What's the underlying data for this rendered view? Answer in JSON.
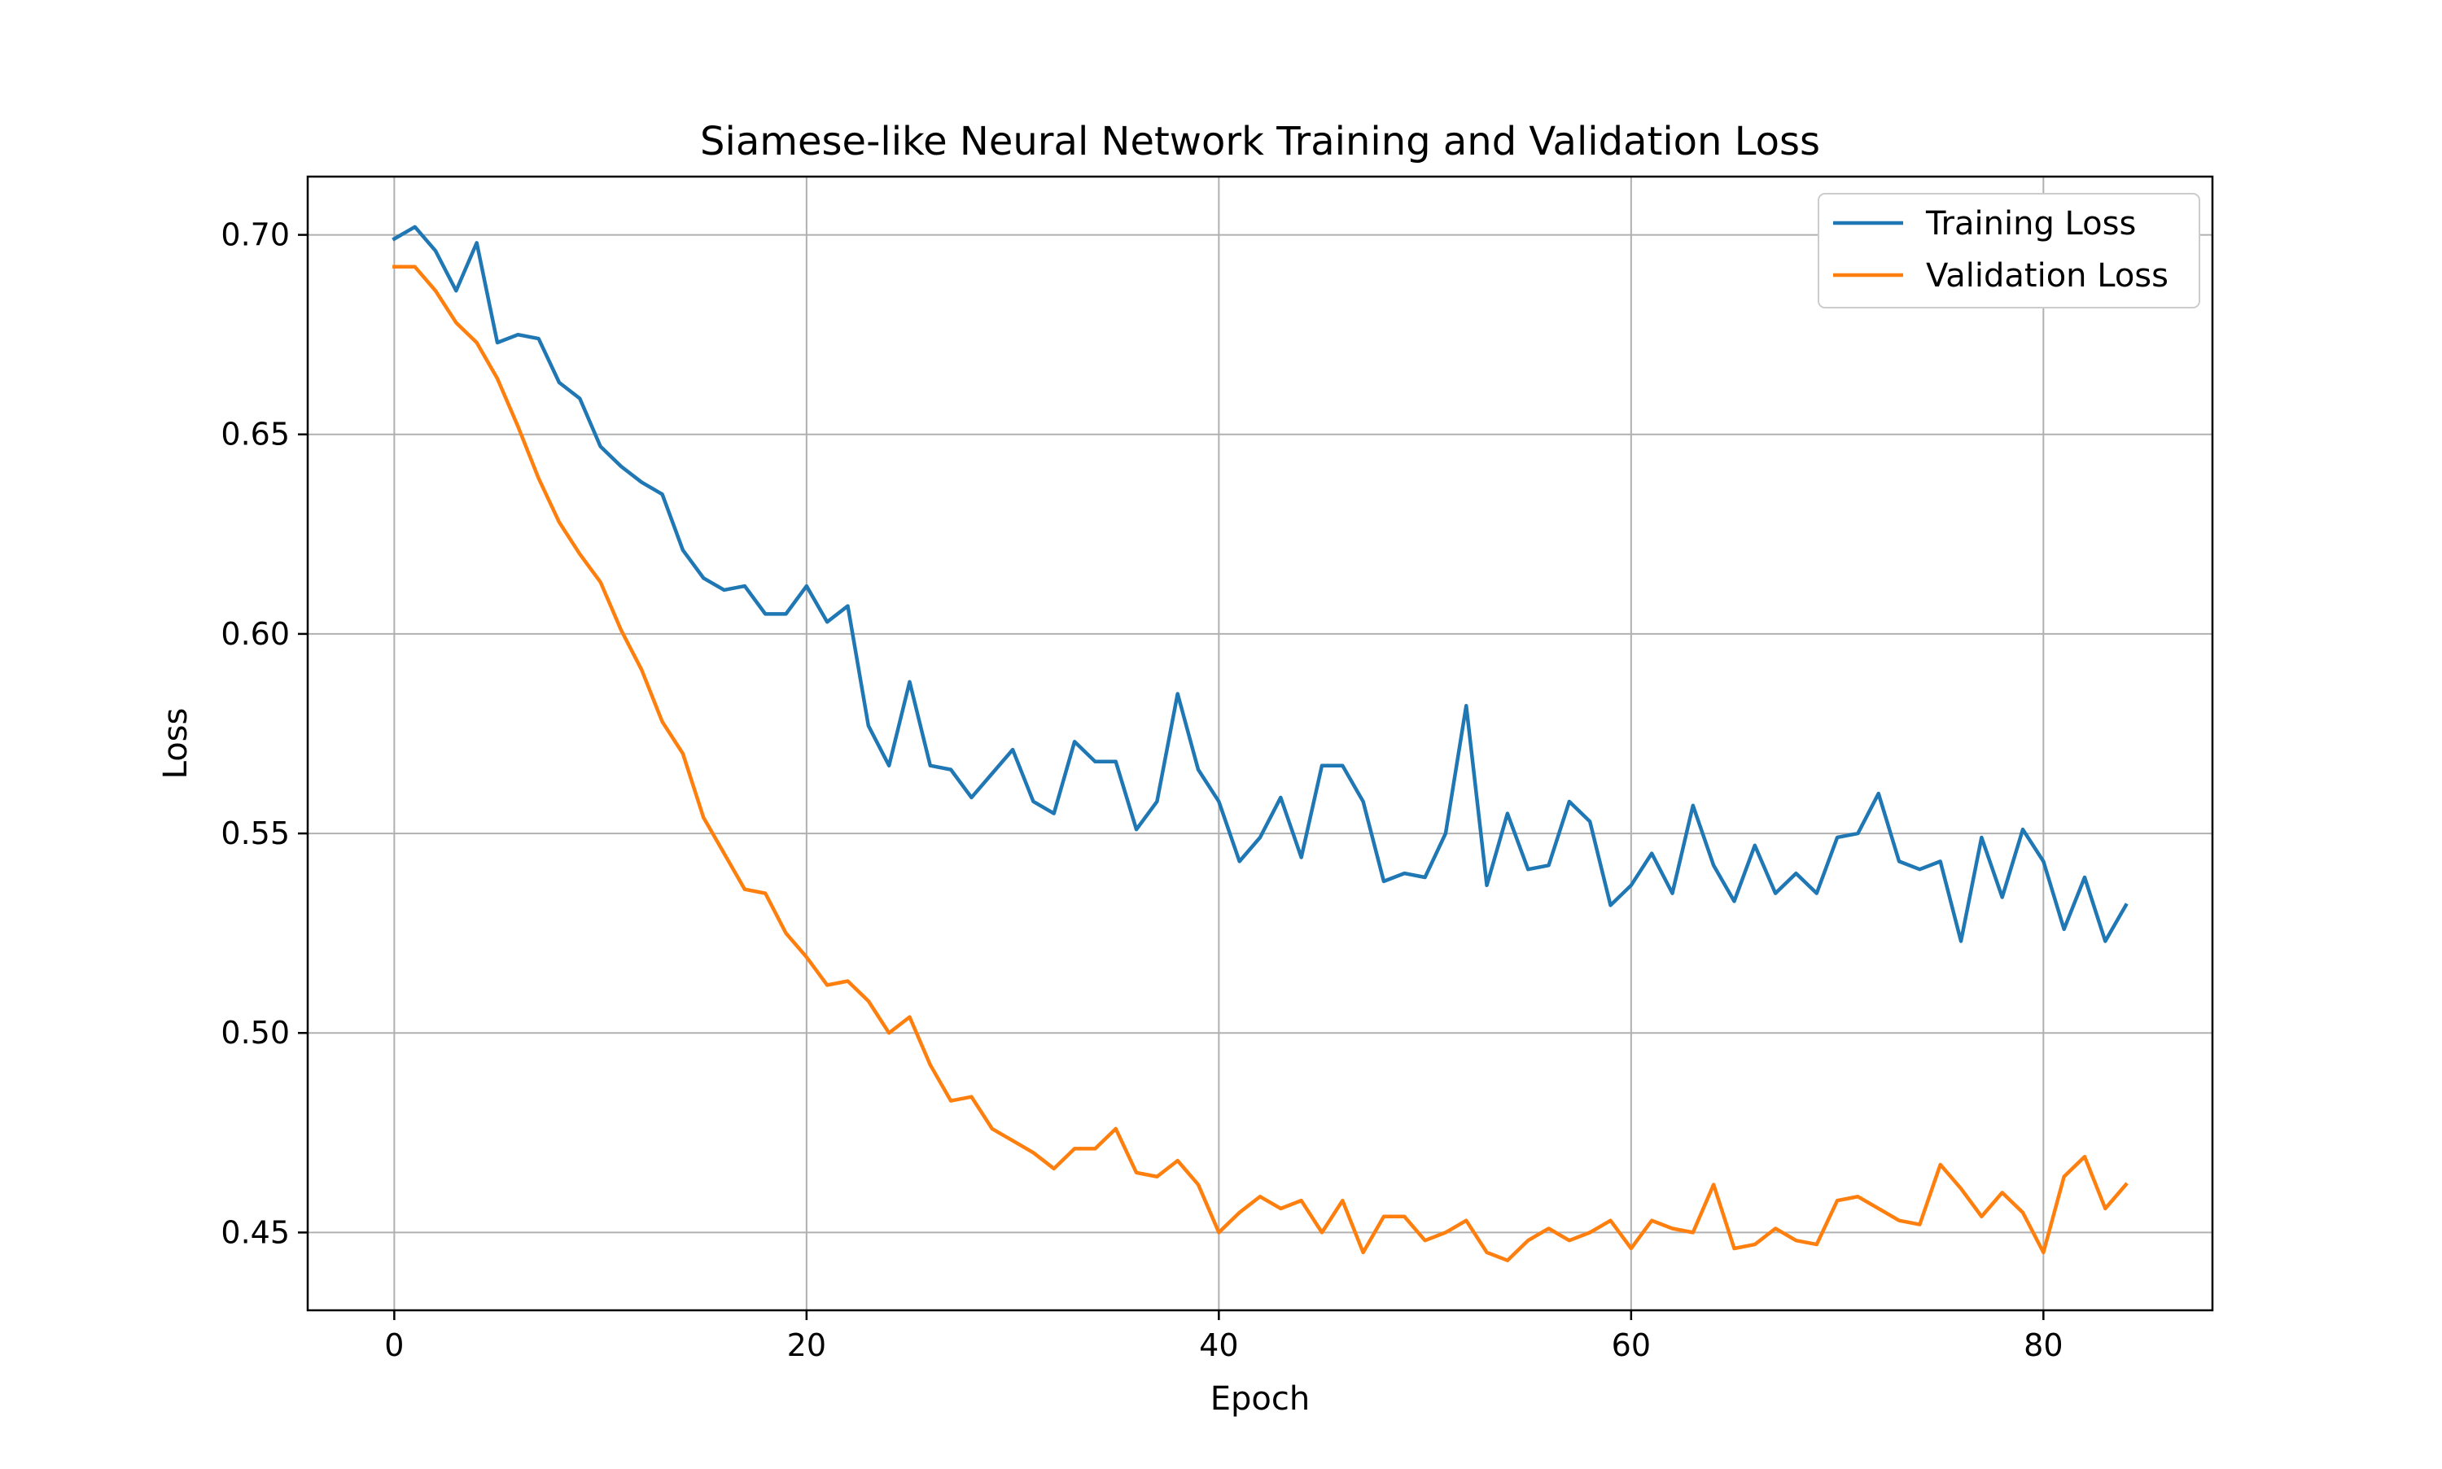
{
  "chart_data": {
    "type": "line",
    "title": "Siamese-like Neural Network Training and Validation Loss",
    "xlabel": "Epoch",
    "ylabel": "Loss",
    "xlim": [
      -4.2,
      88.2
    ],
    "ylim": [
      0.4305,
      0.7146
    ],
    "xticks": [
      0,
      20,
      40,
      60,
      80
    ],
    "yticks": [
      0.45,
      0.5,
      0.55,
      0.6,
      0.65,
      0.7
    ],
    "grid": true,
    "legend_position": "top-right",
    "colors": {
      "Training Loss": "#1f77b4",
      "Validation Loss": "#ff7f0e"
    },
    "series": [
      {
        "name": "Training Loss",
        "x": [
          0,
          1,
          2,
          3,
          4,
          5,
          6,
          7,
          8,
          9,
          10,
          11,
          12,
          13,
          14,
          15,
          16,
          17,
          18,
          19,
          20,
          21,
          22,
          23,
          24,
          25,
          26,
          27,
          28,
          29,
          30,
          31,
          32,
          33,
          34,
          35,
          36,
          37,
          38,
          39,
          40,
          41,
          42,
          43,
          44,
          45,
          46,
          47,
          48,
          49,
          50,
          51,
          52,
          53,
          54,
          55,
          56,
          57,
          58,
          59,
          60,
          61,
          62,
          63,
          64,
          65,
          66,
          67,
          68,
          69,
          70,
          71,
          72,
          73,
          74,
          75,
          76,
          77,
          78,
          79,
          80,
          81,
          82,
          83,
          84
        ],
        "values": [
          0.699,
          0.702,
          0.696,
          0.686,
          0.698,
          0.673,
          0.675,
          0.674,
          0.663,
          0.659,
          0.647,
          0.642,
          0.638,
          0.635,
          0.621,
          0.614,
          0.611,
          0.612,
          0.605,
          0.605,
          0.612,
          0.603,
          0.607,
          0.577,
          0.567,
          0.588,
          0.567,
          0.566,
          0.559,
          0.565,
          0.571,
          0.558,
          0.555,
          0.573,
          0.568,
          0.568,
          0.551,
          0.558,
          0.585,
          0.566,
          0.558,
          0.543,
          0.549,
          0.559,
          0.544,
          0.567,
          0.567,
          0.558,
          0.538,
          0.54,
          0.539,
          0.55,
          0.582,
          0.537,
          0.555,
          0.541,
          0.542,
          0.558,
          0.553,
          0.532,
          0.537,
          0.545,
          0.535,
          0.557,
          0.542,
          0.533,
          0.547,
          0.535,
          0.54,
          0.535,
          0.549,
          0.55,
          0.56,
          0.543,
          0.541,
          0.543,
          0.523,
          0.549,
          0.534,
          0.551,
          0.543,
          0.526,
          0.539,
          0.523,
          0.532
        ]
      },
      {
        "name": "Validation Loss",
        "x": [
          0,
          1,
          2,
          3,
          4,
          5,
          6,
          7,
          8,
          9,
          10,
          11,
          12,
          13,
          14,
          15,
          16,
          17,
          18,
          19,
          20,
          21,
          22,
          23,
          24,
          25,
          26,
          27,
          28,
          29,
          30,
          31,
          32,
          33,
          34,
          35,
          36,
          37,
          38,
          39,
          40,
          41,
          42,
          43,
          44,
          45,
          46,
          47,
          48,
          49,
          50,
          51,
          52,
          53,
          54,
          55,
          56,
          57,
          58,
          59,
          60,
          61,
          62,
          63,
          64,
          65,
          66,
          67,
          68,
          69,
          70,
          71,
          72,
          73,
          74,
          75,
          76,
          77,
          78,
          79,
          80,
          81,
          82,
          83,
          84
        ],
        "values": [
          0.692,
          0.692,
          0.686,
          0.678,
          0.673,
          0.664,
          0.652,
          0.639,
          0.628,
          0.62,
          0.613,
          0.601,
          0.591,
          0.578,
          0.57,
          0.554,
          0.545,
          0.536,
          0.535,
          0.525,
          0.519,
          0.512,
          0.513,
          0.508,
          0.5,
          0.504,
          0.492,
          0.483,
          0.484,
          0.476,
          0.473,
          0.47,
          0.466,
          0.471,
          0.471,
          0.476,
          0.465,
          0.464,
          0.468,
          0.462,
          0.45,
          0.455,
          0.459,
          0.456,
          0.458,
          0.45,
          0.458,
          0.445,
          0.454,
          0.454,
          0.448,
          0.45,
          0.453,
          0.445,
          0.443,
          0.448,
          0.451,
          0.448,
          0.45,
          0.453,
          0.446,
          0.453,
          0.451,
          0.45,
          0.462,
          0.446,
          0.447,
          0.451,
          0.448,
          0.447,
          0.458,
          0.459,
          0.456,
          0.453,
          0.452,
          0.467,
          0.461,
          0.454,
          0.46,
          0.455,
          0.445,
          0.464,
          0.469,
          0.456,
          0.462
        ]
      }
    ]
  }
}
